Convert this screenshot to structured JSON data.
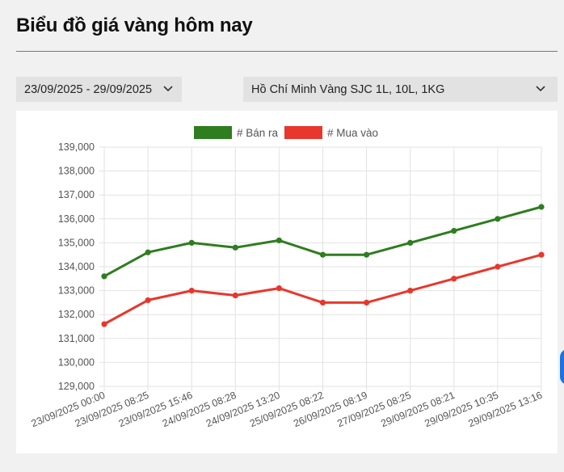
{
  "header": {
    "title": "Biểu đồ giá vàng hôm nay"
  },
  "filters": {
    "date_range": "23/09/2025 - 29/09/2025",
    "product": "Hồ Chí Minh Vàng SJC 1L, 10L, 1KG"
  },
  "chart_data": {
    "type": "line",
    "x": [
      "23/09/2025 00:00",
      "23/09/2025 08:25",
      "23/09/2025 15:46",
      "24/09/2025 08:28",
      "24/09/2025 13:20",
      "25/09/2025 08:22",
      "26/09/2025 08:19",
      "27/09/2025 08:25",
      "29/09/2025 08:21",
      "29/09/2025 10:35",
      "29/09/2025 13:16"
    ],
    "series": [
      {
        "name": "# Bán ra",
        "color": "#2e7d1f",
        "values": [
          133600,
          134600,
          135000,
          134800,
          135100,
          134500,
          134500,
          135000,
          135500,
          136000,
          136500
        ]
      },
      {
        "name": "# Mua vào",
        "color": "#e8372c",
        "values": [
          131600,
          132600,
          133000,
          132800,
          133100,
          132500,
          132500,
          133000,
          133500,
          134000,
          134500
        ]
      }
    ],
    "y_ticks": [
      "129,000",
      "130,000",
      "131,000",
      "132,000",
      "133,000",
      "134,000",
      "135,000",
      "136,000",
      "137,000",
      "138,000",
      "139,000"
    ],
    "ylim": [
      129000,
      139000
    ],
    "grid": true,
    "legend_position": "top-center"
  }
}
